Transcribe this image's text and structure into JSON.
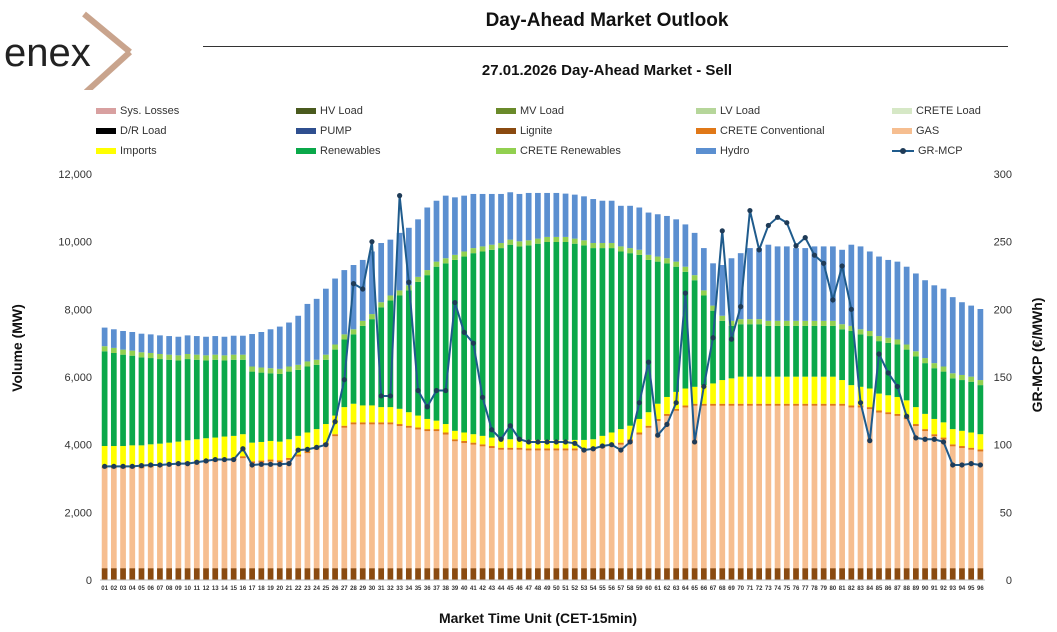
{
  "header": {
    "logo_text": "enex",
    "title": "Day-Ahead Market Outlook",
    "subtitle": "27.01.2026  Day-Ahead Market - Sell"
  },
  "legend": [
    {
      "label": "Sys. Losses",
      "color": "#d8a0a0",
      "kind": "bar"
    },
    {
      "label": "HV Load",
      "color": "#4a5a1e",
      "kind": "bar"
    },
    {
      "label": "MV Load",
      "color": "#6a8a2a",
      "kind": "bar"
    },
    {
      "label": "LV Load",
      "color": "#b6d69a",
      "kind": "bar"
    },
    {
      "label": "CRETE Load",
      "color": "#d6e8c6",
      "kind": "bar"
    },
    {
      "label": "D/R Load",
      "color": "#000000",
      "kind": "bar"
    },
    {
      "label": "PUMP",
      "color": "#2f4f8f",
      "kind": "bar"
    },
    {
      "label": "Lignite",
      "color": "#8a4a10",
      "kind": "bar"
    },
    {
      "label": "CRETE Conventional",
      "color": "#e07818",
      "kind": "bar"
    },
    {
      "label": "GAS",
      "color": "#f6be90",
      "kind": "bar"
    },
    {
      "label": "Imports",
      "color": "#ffff00",
      "kind": "bar"
    },
    {
      "label": "Renewables",
      "color": "#0aa84a",
      "kind": "bar"
    },
    {
      "label": "CRETE Renewables",
      "color": "#92d050",
      "kind": "bar"
    },
    {
      "label": "Hydro",
      "color": "#5b8fd0",
      "kind": "bar"
    },
    {
      "label": "GR-MCP",
      "color": "#1f5b8c",
      "kind": "line"
    }
  ],
  "chart_data": {
    "type": "bar",
    "stacked": true,
    "xlabel": "Market Time Unit (CET-15min)",
    "ylabel": "Volume (MW)",
    "y2label": "GR-MCP (€/MWh)",
    "ylim": [
      0,
      12000
    ],
    "y2lim": [
      0,
      300
    ],
    "yticks": [
      "0",
      "2,000",
      "4,000",
      "6,000",
      "8,000",
      "10,000",
      "12,000"
    ],
    "y2ticks": [
      "0",
      "50",
      "100",
      "150",
      "200",
      "250",
      "300"
    ],
    "categories": [
      "01",
      "02",
      "03",
      "04",
      "05",
      "06",
      "07",
      "08",
      "09",
      "10",
      "11",
      "12",
      "13",
      "14",
      "15",
      "16",
      "17",
      "18",
      "19",
      "20",
      "21",
      "22",
      "23",
      "24",
      "25",
      "26",
      "27",
      "28",
      "29",
      "30",
      "31",
      "32",
      "33",
      "34",
      "35",
      "36",
      "37",
      "38",
      "39",
      "40",
      "41",
      "42",
      "43",
      "44",
      "45",
      "46",
      "47",
      "48",
      "49",
      "50",
      "51",
      "52",
      "53",
      "54",
      "55",
      "56",
      "57",
      "58",
      "59",
      "60",
      "61",
      "62",
      "63",
      "64",
      "65",
      "66",
      "67",
      "68",
      "69",
      "70",
      "71",
      "72",
      "73",
      "74",
      "75",
      "76",
      "77",
      "78",
      "79",
      "80",
      "81",
      "82",
      "83",
      "84",
      "85",
      "86",
      "87",
      "88",
      "89",
      "90",
      "91",
      "92",
      "93",
      "94",
      "95",
      "96"
    ],
    "series": [
      {
        "name": "Lignite",
        "values": [
          350,
          350,
          350,
          350,
          350,
          350,
          350,
          350,
          350,
          350,
          350,
          350,
          350,
          350,
          350,
          350,
          350,
          350,
          350,
          350,
          350,
          350,
          350,
          350,
          350,
          350,
          350,
          350,
          350,
          350,
          350,
          350,
          350,
          350,
          350,
          350,
          350,
          350,
          350,
          350,
          350,
          350,
          350,
          350,
          350,
          350,
          350,
          350,
          350,
          350,
          350,
          350,
          350,
          350,
          350,
          350,
          350,
          350,
          350,
          350,
          350,
          350,
          350,
          350,
          350,
          350,
          350,
          350,
          350,
          350,
          350,
          350,
          350,
          350,
          350,
          350,
          350,
          350,
          350,
          350,
          350,
          350,
          350,
          350,
          350,
          350,
          350,
          350,
          350,
          350,
          350,
          350,
          350,
          350,
          350,
          350
        ]
      },
      {
        "name": "GAS",
        "values": [
          2950,
          2950,
          2950,
          2950,
          2950,
          2980,
          3000,
          3030,
          3050,
          3080,
          3100,
          3130,
          3150,
          3180,
          3200,
          3250,
          3100,
          3120,
          3150,
          3130,
          3200,
          3300,
          3400,
          3500,
          3650,
          3900,
          4150,
          4250,
          4250,
          4250,
          4250,
          4250,
          4200,
          4150,
          4100,
          4050,
          4050,
          3950,
          3750,
          3700,
          3650,
          3600,
          3550,
          3500,
          3500,
          3500,
          3480,
          3480,
          3480,
          3480,
          3480,
          3480,
          3480,
          3500,
          3550,
          3600,
          3650,
          3750,
          3950,
          4150,
          4350,
          4500,
          4650,
          4750,
          4800,
          4800,
          4800,
          4800,
          4800,
          4800,
          4800,
          4800,
          4800,
          4800,
          4800,
          4800,
          4800,
          4800,
          4800,
          4800,
          4800,
          4750,
          4750,
          4700,
          4600,
          4550,
          4500,
          4400,
          4200,
          4050,
          3900,
          3800,
          3600,
          3550,
          3500,
          3450
        ]
      },
      {
        "name": "CRETE Conventional",
        "values": [
          60,
          60,
          60,
          60,
          60,
          60,
          60,
          60,
          60,
          60,
          60,
          60,
          60,
          60,
          60,
          60,
          60,
          60,
          60,
          60,
          60,
          60,
          60,
          60,
          60,
          60,
          60,
          60,
          60,
          60,
          60,
          60,
          60,
          60,
          60,
          60,
          60,
          60,
          60,
          60,
          60,
          60,
          60,
          60,
          60,
          60,
          60,
          60,
          60,
          60,
          60,
          60,
          60,
          60,
          60,
          60,
          60,
          60,
          60,
          60,
          60,
          60,
          60,
          60,
          60,
          60,
          60,
          60,
          60,
          60,
          60,
          60,
          60,
          60,
          60,
          60,
          60,
          60,
          60,
          60,
          60,
          60,
          60,
          60,
          60,
          60,
          60,
          60,
          60,
          60,
          60,
          60,
          60,
          60,
          60,
          60
        ]
      },
      {
        "name": "Imports",
        "values": [
          600,
          600,
          600,
          620,
          620,
          620,
          620,
          620,
          630,
          640,
          650,
          650,
          650,
          650,
          650,
          650,
          550,
          550,
          550,
          550,
          550,
          550,
          550,
          550,
          550,
          550,
          550,
          550,
          500,
          500,
          450,
          450,
          450,
          400,
          350,
          300,
          250,
          250,
          250,
          250,
          250,
          250,
          250,
          250,
          250,
          250,
          250,
          250,
          250,
          250,
          250,
          250,
          250,
          250,
          300,
          350,
          400,
          400,
          400,
          400,
          450,
          500,
          500,
          500,
          500,
          550,
          600,
          700,
          750,
          800,
          800,
          800,
          800,
          800,
          800,
          800,
          800,
          800,
          800,
          800,
          700,
          600,
          550,
          550,
          500,
          500,
          500,
          500,
          500,
          450,
          450,
          450,
          450,
          450,
          450,
          450
        ]
      },
      {
        "name": "Renewables",
        "values": [
          2800,
          2750,
          2700,
          2650,
          2600,
          2550,
          2500,
          2450,
          2400,
          2400,
          2350,
          2300,
          2300,
          2250,
          2250,
          2200,
          2100,
          2050,
          2000,
          2000,
          2000,
          1950,
          1950,
          1900,
          1900,
          1950,
          2000,
          2050,
          2350,
          2550,
          2950,
          3150,
          3350,
          3600,
          3950,
          4250,
          4550,
          4750,
          5050,
          5200,
          5350,
          5450,
          5550,
          5650,
          5750,
          5700,
          5750,
          5800,
          5850,
          5850,
          5850,
          5800,
          5750,
          5650,
          5550,
          5450,
          5250,
          5100,
          4850,
          4500,
          4200,
          3950,
          3700,
          3450,
          3150,
          2650,
          2150,
          1750,
          1550,
          1550,
          1550,
          1550,
          1500,
          1500,
          1500,
          1500,
          1500,
          1500,
          1500,
          1500,
          1500,
          1600,
          1550,
          1550,
          1550,
          1550,
          1550,
          1500,
          1500,
          1500,
          1500,
          1500,
          1500,
          1500,
          1500,
          1450
        ]
      },
      {
        "name": "CRETE Renewables",
        "values": [
          150,
          150,
          150,
          150,
          150,
          150,
          150,
          150,
          150,
          150,
          150,
          150,
          150,
          150,
          150,
          150,
          150,
          150,
          150,
          150,
          150,
          150,
          150,
          150,
          150,
          150,
          150,
          150,
          150,
          150,
          150,
          150,
          150,
          150,
          150,
          150,
          150,
          150,
          150,
          150,
          150,
          150,
          150,
          150,
          150,
          150,
          150,
          150,
          150,
          150,
          150,
          150,
          150,
          150,
          150,
          150,
          150,
          150,
          150,
          150,
          150,
          150,
          150,
          150,
          150,
          150,
          150,
          150,
          150,
          150,
          150,
          150,
          150,
          150,
          150,
          150,
          150,
          150,
          150,
          150,
          150,
          150,
          150,
          150,
          150,
          150,
          150,
          150,
          150,
          150,
          150,
          150,
          150,
          150,
          150,
          150
        ]
      },
      {
        "name": "Hydro",
        "values": [
          550,
          550,
          550,
          550,
          550,
          550,
          550,
          550,
          550,
          550,
          550,
          550,
          550,
          550,
          560,
          560,
          960,
          1050,
          1150,
          1250,
          1300,
          1450,
          1700,
          1800,
          1950,
          1950,
          1900,
          1900,
          1800,
          1850,
          1750,
          1650,
          1700,
          1700,
          1700,
          1850,
          1800,
          1850,
          1700,
          1650,
          1600,
          1550,
          1500,
          1450,
          1400,
          1400,
          1400,
          1350,
          1300,
          1300,
          1280,
          1300,
          1300,
          1300,
          1250,
          1250,
          1200,
          1250,
          1250,
          1250,
          1250,
          1250,
          1250,
          1250,
          1250,
          1250,
          1250,
          1500,
          1850,
          1950,
          2100,
          2100,
          2250,
          2200,
          2200,
          2150,
          2150,
          2200,
          2200,
          2200,
          2200,
          2400,
          2450,
          2350,
          2350,
          2300,
          2300,
          2300,
          2300,
          2300,
          2300,
          2300,
          2250,
          2150,
          2100,
          2100
        ]
      }
    ],
    "line": {
      "name": "GR-MCP",
      "values": [
        84,
        84,
        84,
        84,
        84.5,
        85,
        85,
        85.5,
        86,
        86,
        87,
        88,
        89,
        89,
        89,
        97,
        85,
        85.5,
        85.5,
        85.5,
        86,
        96,
        96.5,
        98,
        100,
        117,
        148,
        219,
        215,
        250,
        136,
        136,
        284,
        220,
        140,
        128,
        140,
        140,
        205,
        183,
        175,
        135,
        111,
        104,
        114,
        104,
        102,
        102,
        102,
        102,
        102,
        101,
        96,
        97,
        99,
        100,
        96,
        102,
        131,
        161,
        107,
        115,
        131,
        212,
        102,
        143,
        179,
        258,
        178,
        202,
        273,
        244,
        262,
        268,
        264,
        247,
        253,
        240,
        234,
        207,
        232,
        200,
        131,
        103,
        167,
        153,
        143,
        121,
        105,
        104,
        104,
        102,
        85,
        85,
        86,
        85
      ]
    }
  }
}
